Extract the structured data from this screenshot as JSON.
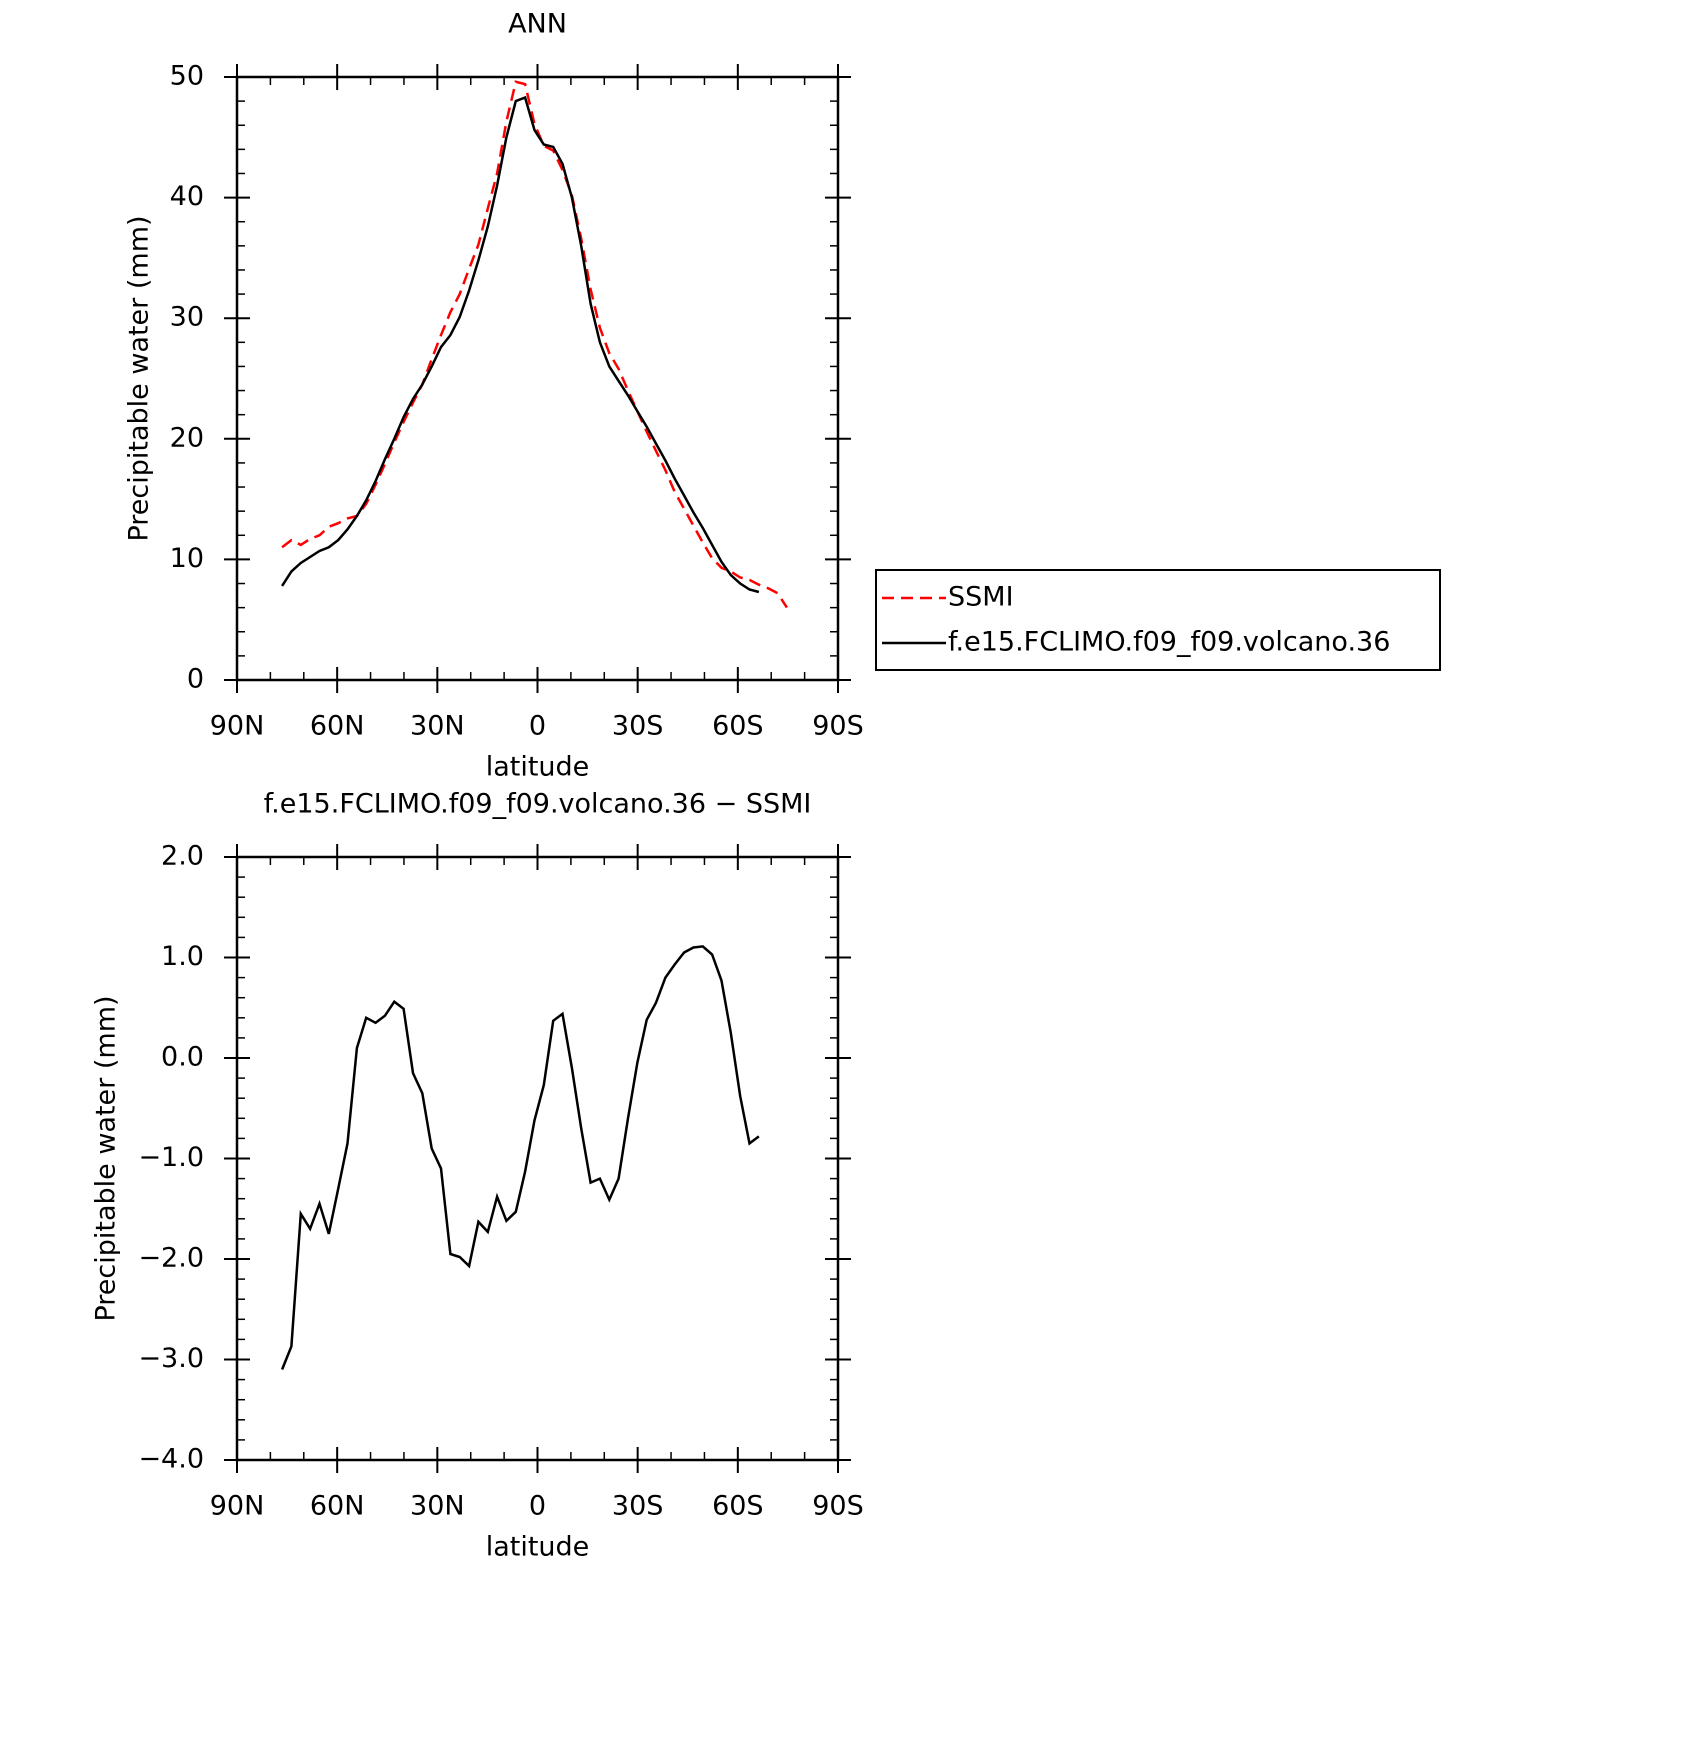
{
  "chart_data": [
    {
      "type": "line",
      "title": "ANN",
      "xlabel": "latitude",
      "ylabel": "Precipitable water (mm)",
      "x": [
        76.5,
        73.7,
        70.9,
        68.1,
        65.3,
        62.5,
        59.7,
        56.9,
        54.1,
        51.3,
        48.5,
        45.7,
        42.9,
        40.1,
        37.3,
        34.5,
        31.7,
        28.9,
        26.1,
        23.3,
        20.5,
        17.7,
        14.9,
        12.1,
        9.3,
        6.5,
        3.7,
        0.9,
        -1.9,
        -4.7,
        -7.5,
        -10.3,
        -13.1,
        -15.9,
        -18.7,
        -21.5,
        -24.3,
        -27.1,
        -29.9,
        -32.7,
        -35.5,
        -38.3,
        -41.1,
        -43.9,
        -46.7,
        -49.5,
        -52.3,
        -55.1,
        -57.9,
        -60.7,
        -63.5,
        -66.3,
        -69.1,
        -71.9,
        -74.7
      ],
      "series": [
        {
          "name": "SSMI",
          "color": "#ff0000",
          "linestyle": "dashed",
          "values": [
            11.0,
            11.6,
            11.2,
            11.7,
            12.0,
            12.7,
            13.0,
            13.4,
            13.6,
            14.6,
            16.2,
            17.9,
            19.7,
            21.4,
            23.0,
            24.5,
            26.6,
            28.6,
            30.5,
            32.0,
            34.1,
            36.1,
            39.1,
            42.0,
            46.3,
            49.6,
            49.4,
            46.1,
            44.3,
            43.9,
            42.3,
            40.2,
            36.6,
            32.4,
            29.2,
            27.1,
            25.8,
            24.0,
            22.3,
            20.6,
            19.0,
            17.4,
            15.6,
            14.2,
            12.8,
            11.4,
            10.1,
            9.3,
            9.0,
            8.5,
            8.3,
            7.9,
            7.6,
            7.2,
            6.0
          ]
        },
        {
          "name": "f.e15.FCLIMO.f09_f09.volcano.36",
          "color": "#000000",
          "linestyle": "solid",
          "values": [
            7.8,
            9.0,
            9.7,
            10.2,
            10.7,
            11.0,
            11.6,
            12.5,
            13.6,
            14.9,
            16.5,
            18.3,
            20.0,
            21.8,
            23.3,
            24.5,
            26.0,
            27.6,
            28.6,
            30.1,
            32.3,
            34.8,
            37.6,
            41.0,
            45.0,
            48.0,
            48.3,
            45.6,
            44.4,
            44.2,
            42.8,
            40.0,
            36.0,
            31.2,
            28.0,
            26.0,
            24.8,
            23.6,
            22.3,
            21.0,
            19.6,
            18.2,
            16.7,
            15.3,
            13.9,
            12.6,
            11.2,
            9.8,
            8.7,
            8.0,
            7.5,
            7.3,
            null,
            null,
            null
          ]
        }
      ],
      "xlim": [
        90,
        -90
      ],
      "xticks": [
        {
          "value": 90,
          "label": "90N"
        },
        {
          "value": 60,
          "label": "60N"
        },
        {
          "value": 30,
          "label": "30N"
        },
        0,
        {
          "value": -30,
          "label": "30S"
        },
        {
          "value": -60,
          "label": "60S"
        },
        {
          "value": -90,
          "label": "90S"
        }
      ],
      "ylim": [
        0,
        50
      ],
      "yticks": [
        0,
        10,
        20,
        30,
        40,
        50
      ],
      "legend": "right"
    },
    {
      "type": "line",
      "title": "f.e15.FCLIMO.f09_f09.volcano.36 − SSMI",
      "xlabel": "latitude",
      "ylabel": "Precipitable water (mm)",
      "x": [
        76.5,
        73.7,
        70.9,
        68.1,
        65.3,
        62.5,
        59.7,
        56.9,
        54.1,
        51.3,
        48.5,
        45.7,
        42.9,
        40.1,
        37.3,
        34.5,
        31.7,
        28.9,
        26.1,
        23.3,
        20.5,
        17.7,
        14.9,
        12.1,
        9.3,
        6.5,
        3.7,
        0.9,
        -1.9,
        -4.7,
        -7.5,
        -10.3,
        -13.1,
        -15.9,
        -18.7,
        -21.5,
        -24.3,
        -27.1,
        -29.9,
        -32.7,
        -35.5,
        -38.3,
        -41.1,
        -43.9,
        -46.7,
        -49.5,
        -52.3,
        -55.1,
        -57.9,
        -60.7,
        -63.5,
        -66.3
      ],
      "color": "#000000",
      "values": [
        -3.1,
        -2.87,
        -1.55,
        -1.7,
        -1.45,
        -1.75,
        -1.3,
        -0.85,
        0.1,
        0.4,
        0.35,
        0.42,
        0.56,
        0.49,
        -0.15,
        -0.35,
        -0.9,
        -1.1,
        -1.95,
        -1.98,
        -2.07,
        -1.63,
        -1.73,
        -1.38,
        -1.62,
        -1.53,
        -1.13,
        -0.62,
        -0.27,
        0.37,
        0.44,
        -0.1,
        -0.7,
        -1.24,
        -1.2,
        -1.41,
        -1.2,
        -0.6,
        -0.05,
        0.38,
        0.55,
        0.8,
        0.93,
        1.05,
        1.1,
        1.11,
        1.03,
        0.77,
        0.25,
        -0.38,
        -0.85,
        -0.78
      ],
      "xlim": [
        90,
        -90
      ],
      "xticks": [
        {
          "value": 90,
          "label": "90N"
        },
        {
          "value": 60,
          "label": "60N"
        },
        {
          "value": 30,
          "label": "30N"
        },
        0,
        {
          "value": -30,
          "label": "30S"
        },
        {
          "value": -60,
          "label": "60S"
        },
        {
          "value": -90,
          "label": "90S"
        }
      ],
      "ylim": [
        -4,
        2
      ],
      "yticks": [
        {
          "value": -4,
          "label": "−4.0"
        },
        {
          "value": -3,
          "label": "−3.0"
        },
        {
          "value": -2,
          "label": "−2.0"
        },
        {
          "value": -1,
          "label": "−1.0"
        },
        {
          "value": 0,
          "label": "0.0"
        },
        {
          "value": 1,
          "label": "1.0"
        },
        {
          "value": 2,
          "label": "2.0"
        }
      ]
    }
  ]
}
